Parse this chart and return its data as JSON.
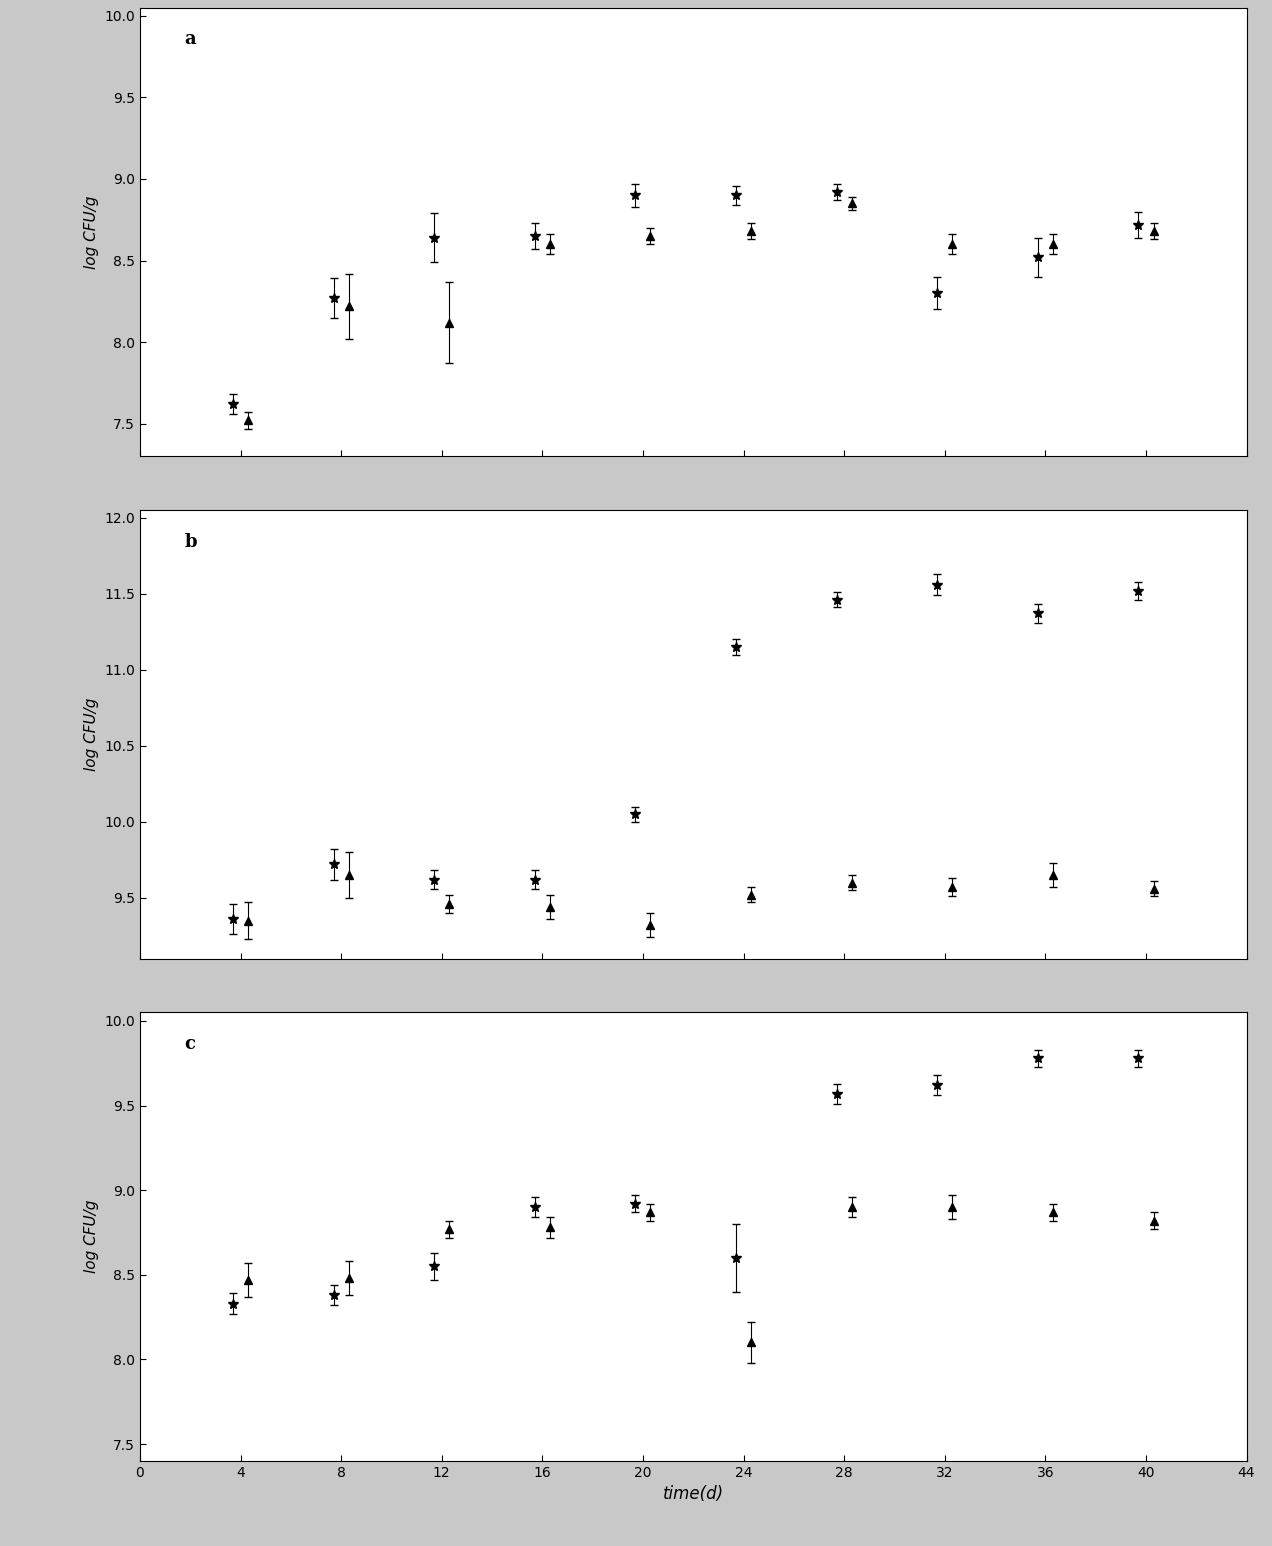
{
  "x": [
    4,
    8,
    12,
    16,
    20,
    24,
    28,
    32,
    36,
    40
  ],
  "panel_a": {
    "label": "a",
    "ylim": [
      7.3,
      10.05
    ],
    "yticks": [
      7.5,
      8.0,
      8.5,
      9.0,
      9.5,
      10.0
    ],
    "ylabel": "log CFU/g",
    "series1": {
      "y": [
        7.62,
        8.27,
        8.64,
        8.65,
        8.9,
        8.9,
        8.92,
        8.3,
        8.52,
        8.72
      ],
      "yerr": [
        0.06,
        0.12,
        0.15,
        0.08,
        0.07,
        0.06,
        0.05,
        0.1,
        0.12,
        0.08
      ],
      "marker": "*"
    },
    "series2": {
      "y": [
        7.52,
        8.22,
        8.12,
        8.6,
        8.65,
        8.68,
        8.85,
        8.6,
        8.6,
        8.68
      ],
      "yerr": [
        0.05,
        0.2,
        0.25,
        0.06,
        0.05,
        0.05,
        0.04,
        0.06,
        0.06,
        0.05
      ],
      "marker": "^"
    }
  },
  "panel_b": {
    "label": "b",
    "ylim": [
      9.1,
      12.05
    ],
    "yticks": [
      9.5,
      10.0,
      10.5,
      11.0,
      11.5,
      12.0
    ],
    "ylabel": "log CFU/g",
    "series1": {
      "y": [
        9.36,
        9.72,
        9.62,
        9.62,
        10.05,
        11.15,
        11.46,
        11.56,
        11.37,
        11.52
      ],
      "yerr": [
        0.1,
        0.1,
        0.06,
        0.06,
        0.05,
        0.05,
        0.05,
        0.07,
        0.06,
        0.06
      ],
      "marker": "*"
    },
    "series2": {
      "y": [
        9.35,
        9.65,
        9.46,
        9.44,
        9.32,
        9.52,
        9.6,
        9.57,
        9.65,
        9.56
      ],
      "yerr": [
        0.12,
        0.15,
        0.06,
        0.08,
        0.08,
        0.05,
        0.05,
        0.06,
        0.08,
        0.05
      ],
      "marker": "^"
    }
  },
  "panel_c": {
    "label": "c",
    "ylim": [
      7.4,
      10.05
    ],
    "yticks": [
      7.5,
      8.0,
      8.5,
      9.0,
      9.5,
      10.0
    ],
    "ylabel": "log CFU/g",
    "series1": {
      "y": [
        8.33,
        8.38,
        8.55,
        8.9,
        8.92,
        8.6,
        9.57,
        9.62,
        9.78,
        9.78
      ],
      "yerr": [
        0.06,
        0.06,
        0.08,
        0.06,
        0.05,
        0.2,
        0.06,
        0.06,
        0.05,
        0.05
      ],
      "marker": "*"
    },
    "series2": {
      "y": [
        8.47,
        8.48,
        8.77,
        8.78,
        8.87,
        8.1,
        8.9,
        8.9,
        8.87,
        8.82
      ],
      "yerr": [
        0.1,
        0.1,
        0.05,
        0.06,
        0.05,
        0.12,
        0.06,
        0.07,
        0.05,
        0.05
      ],
      "marker": "^"
    }
  },
  "xlabel": "time(d)",
  "xlim": [
    0,
    44
  ],
  "xticks": [
    0,
    4,
    8,
    12,
    16,
    20,
    24,
    28,
    32,
    36,
    40,
    44
  ],
  "marker_size": 7,
  "capsize": 3,
  "color": "#000000",
  "linewidth": 0.8,
  "elinewidth": 0.8,
  "background_color": "#ffffff",
  "fig_bg": "#c8c8c8"
}
